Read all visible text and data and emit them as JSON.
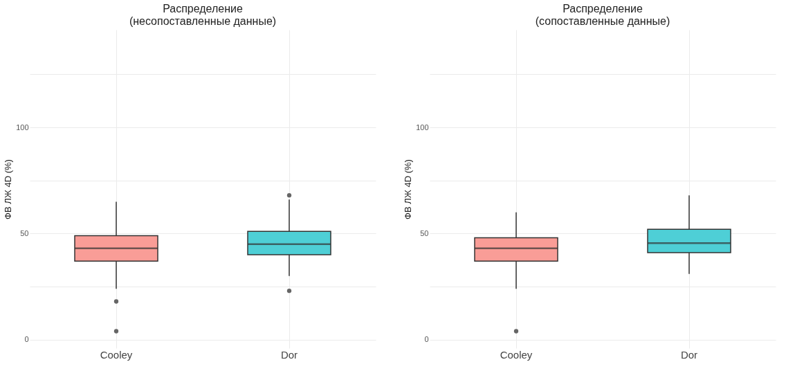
{
  "chart_data": [
    {
      "type": "box",
      "title": "Распределение\n(несопоставленные данные)",
      "ylabel": "ФВ ЛЖ 4D (%)",
      "categories": [
        "Cooley",
        "Dor"
      ],
      "colors": [
        "#f99d97",
        "#4ecfd6"
      ],
      "boxes": [
        {
          "low": 24,
          "q1": 37,
          "median": 43,
          "q3": 49,
          "high": 65,
          "outliers": [
            18,
            4
          ]
        },
        {
          "low": 30,
          "q1": 40,
          "median": 45,
          "q3": 51,
          "high": 66,
          "outliers": [
            68,
            23
          ]
        }
      ],
      "ylim": [
        -4,
        146
      ],
      "yticks": [
        0,
        {
          "value": 25,
          "label": null
        },
        50,
        {
          "value": 75,
          "label": null
        },
        100,
        {
          "value": 125,
          "label": null
        }
      ],
      "grid": true,
      "legend": false
    },
    {
      "type": "box",
      "title": "Распределение\n(сопоставленные данные)",
      "ylabel": "ФВ ЛЖ 4D (%)",
      "categories": [
        "Cooley",
        "Dor"
      ],
      "colors": [
        "#f99d97",
        "#4ecfd6"
      ],
      "boxes": [
        {
          "low": 24,
          "q1": 37,
          "median": 43,
          "q3": 48,
          "high": 60,
          "outliers": [
            4
          ]
        },
        {
          "low": 31,
          "q1": 41,
          "median": 45.5,
          "q3": 52,
          "high": 68
        }
      ],
      "ylim": [
        -4,
        146
      ],
      "yticks": [
        0,
        {
          "value": 25,
          "label": null
        },
        50,
        {
          "value": 75,
          "label": null
        },
        100,
        {
          "value": 125,
          "label": null
        }
      ],
      "grid": true,
      "legend": false
    }
  ]
}
